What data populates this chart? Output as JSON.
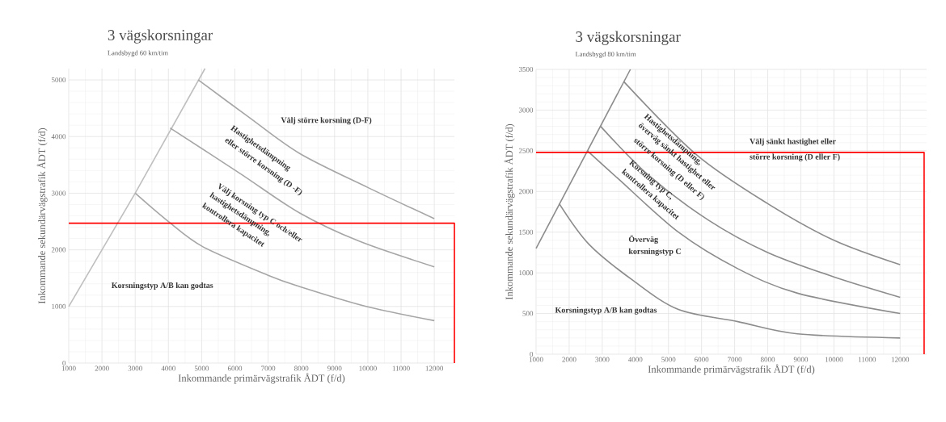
{
  "chart_data": [
    {
      "type": "line",
      "title": "3 vägskorsningar",
      "subtitle": "Landsbygd 60 km/tim",
      "xlabel": "Inkommande primärvägstrafik ÅDT (f/d)",
      "ylabel": "Inkommande sekundärvägstrafik ÅDT (f/d)",
      "xlim": [
        1000,
        12605
      ],
      "ylim": [
        0,
        5200
      ],
      "xticks": [
        1000,
        2000,
        3000,
        4000,
        5000,
        6000,
        7000,
        8000,
        9000,
        10000,
        11000,
        12000
      ],
      "yticks": [
        0,
        1000,
        2000,
        3000,
        4000,
        5000
      ],
      "grid": true,
      "series": [
        {
          "color": "#bfbfbf",
          "x": [
            1000,
            3000,
            5100
          ],
          "values": [
            1000,
            3000,
            5200
          ]
        },
        {
          "color": "#a6a6a6",
          "x": [
            4900,
            6400,
            7950,
            10000,
            12000
          ],
          "values": [
            5000,
            4350,
            3700,
            3100,
            2550
          ]
        },
        {
          "color": "#a6a6a6",
          "x": [
            4050,
            6150,
            7950,
            9750,
            12000
          ],
          "values": [
            4150,
            3350,
            2650,
            2150,
            1700
          ]
        },
        {
          "color": "#a6a6a6",
          "x": [
            3000,
            4000,
            5050,
            7000,
            7950,
            9950,
            12000
          ],
          "values": [
            3000,
            2500,
            2050,
            1550,
            1350,
            1000,
            750
          ]
        },
        {
          "color": "#ff0000",
          "x": [
            1000,
            12605,
            12605
          ],
          "values": [
            2470,
            2470,
            0
          ]
        }
      ],
      "annotations": [
        "Välj större korsning (D-F)",
        "Hastighetsdämpning",
        "eller  större korsning (D -F)",
        "Välj korsning typ C och/eller",
        "hastighetsdämpning,",
        "kontrollera kapacitet",
        "Korsningstyp A/B kan godtas"
      ]
    },
    {
      "type": "line",
      "title": "3 vägskorsningar",
      "subtitle": "Landsbygd 80 km/tim",
      "xlabel": "Inkommande primärvägstrafik ÅDT (f/d)",
      "ylabel": "Inkommande sekundärvägstrafik ÅDT (f/d)",
      "xlim": [
        1000,
        12800
      ],
      "ylim": [
        0,
        3500
      ],
      "xticks": [
        1000,
        2000,
        3000,
        4000,
        5000,
        6000,
        7000,
        8000,
        9000,
        10000,
        11000,
        12000
      ],
      "yticks": [
        0,
        500,
        1000,
        1500,
        2000,
        2500,
        3000,
        3500
      ],
      "grid": true,
      "series": [
        {
          "color": "#8c8c8c",
          "x": [
            1000,
            3850
          ],
          "values": [
            1300,
            3500
          ]
        },
        {
          "color": "#8c8c8c",
          "x": [
            3650,
            5850,
            8000,
            10000,
            12000
          ],
          "values": [
            3350,
            2450,
            1850,
            1400,
            1100
          ]
        },
        {
          "color": "#8c8c8c",
          "x": [
            2950,
            4400,
            6200,
            8000,
            10000,
            12000
          ],
          "values": [
            2800,
            2200,
            1650,
            1250,
            950,
            700
          ]
        },
        {
          "color": "#8c8c8c",
          "x": [
            2550,
            3500,
            5300,
            7100,
            8900,
            12000
          ],
          "values": [
            2500,
            2150,
            1500,
            1050,
            750,
            500
          ]
        },
        {
          "color": "#8c8c8c",
          "x": [
            1700,
            2600,
            3950,
            5300,
            7100,
            8900,
            12000
          ],
          "values": [
            1850,
            1350,
            900,
            550,
            400,
            250,
            200
          ]
        },
        {
          "color": "#ff0000",
          "x": [
            1000,
            12725,
            12725
          ],
          "values": [
            2480,
            2480,
            0
          ]
        }
      ],
      "annotations": [
        "Välj sänkt hastighet eller",
        "större korsning (D eller F)",
        "Hastighetsdämpning,",
        "överväg  sänkt hastighet  eller",
        "större  korsning (D eller F)",
        "Korsning typ C,",
        "kontrollera kapacitet",
        "Överväg",
        "korsningstyp C",
        "Korsningstyp A/B kan godtas"
      ]
    }
  ]
}
